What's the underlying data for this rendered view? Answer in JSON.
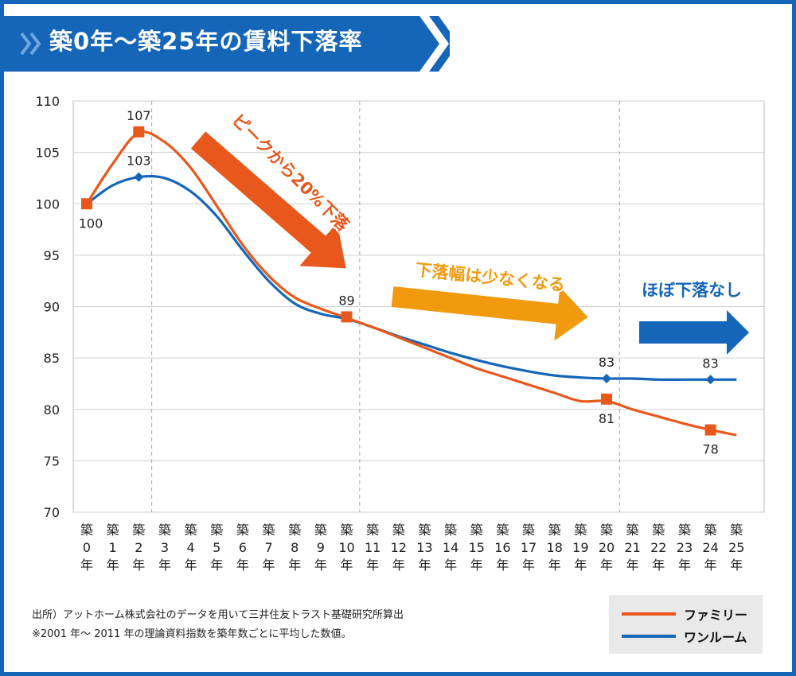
{
  "header": {
    "title": "築0年〜築25年の賃料下落率"
  },
  "chart_data": {
    "type": "line",
    "title": "築0年〜築25年の賃料下落率",
    "ylim": [
      70,
      110
    ],
    "yticks": [
      110,
      105,
      100,
      95,
      90,
      85,
      80,
      75,
      70
    ],
    "categories": [
      "築0年",
      "築1年",
      "築2年",
      "築3年",
      "築4年",
      "築5年",
      "築6年",
      "築7年",
      "築8年",
      "築9年",
      "築10年",
      "築11年",
      "築12年",
      "築13年",
      "築14年",
      "築15年",
      "築16年",
      "築17年",
      "築18年",
      "築19年",
      "築20年",
      "築21年",
      "築22年",
      "築23年",
      "築24年",
      "築25年"
    ],
    "category_numbers": [
      "0",
      "1",
      "2",
      "3",
      "4",
      "5",
      "6",
      "7",
      "8",
      "9",
      "10",
      "11",
      "12",
      "13",
      "14",
      "15",
      "16",
      "17",
      "18",
      "19",
      "20",
      "21",
      "22",
      "23",
      "24",
      "25"
    ],
    "category_prefix": "築",
    "category_suffix": "年",
    "grid": true,
    "dashed_vertical_lines_at": [
      2.5,
      10.5,
      20.5
    ],
    "series": [
      {
        "name": "ファミリー",
        "color": "#e8581c",
        "marker": "square",
        "values": [
          100,
          103.9,
          106.9,
          106.0,
          103.5,
          99.8,
          96.0,
          93.0,
          90.9,
          89.8,
          88.9,
          88.0,
          87.0,
          86.0,
          85.0,
          84.0,
          83.2,
          82.4,
          81.6,
          80.8,
          80.8,
          80.0,
          79.3,
          78.6,
          78.0,
          77.5
        ],
        "marker_points": [
          {
            "x": 0,
            "y": 100,
            "label": "100",
            "label_pos": "below"
          },
          {
            "x": 2,
            "y": 107,
            "label": "107",
            "label_pos": "above"
          },
          {
            "x": 10,
            "y": 89,
            "label": "89",
            "label_pos": "above"
          },
          {
            "x": 20,
            "y": 81,
            "label": "81",
            "label_pos": "below"
          },
          {
            "x": 24,
            "y": 78,
            "label": "78",
            "label_pos": "below"
          }
        ]
      },
      {
        "name": "ワンルーム",
        "color": "#1565b9",
        "marker": "diamond",
        "values": [
          100,
          101.8,
          102.6,
          102.5,
          101.2,
          98.8,
          95.5,
          92.5,
          90.3,
          89.3,
          88.8,
          88.0,
          87.1,
          86.3,
          85.5,
          84.8,
          84.2,
          83.7,
          83.3,
          83.1,
          83.0,
          83.0,
          82.9,
          82.9,
          82.9,
          82.9
        ],
        "marker_points": [
          {
            "x": 2,
            "y": 102.6,
            "label": "103",
            "label_pos": "above"
          },
          {
            "x": 20,
            "y": 83,
            "label": "83",
            "label_pos": "above"
          },
          {
            "x": 24,
            "y": 82.9,
            "label": "83",
            "label_pos": "above"
          }
        ]
      }
    ],
    "annotations": [
      {
        "id": "peak",
        "text": "ピークから20%下落",
        "color": "#e8581c"
      },
      {
        "id": "narrow",
        "text": "下落幅は少なくなる",
        "color": "#f29a0e"
      },
      {
        "id": "flat",
        "text": "ほぼ下落なし",
        "color": "#1565b9"
      }
    ],
    "legend": [
      "ファミリー",
      "ワンルーム"
    ],
    "legend_position": "bottom-right"
  },
  "footer": {
    "source_line1": "出所）アットホーム株式会社のデータを用いて三井住友トラスト基礎研究所算出",
    "source_line2": "※2001 年〜 2011 年の理論資料指数を築年数ごとに平均した数値。"
  },
  "colors": {
    "frame": "#1565b9",
    "title_banner": "#1565b9",
    "family": "#e8581c",
    "oneroom": "#1565b9",
    "arrow_orange": "#f29a0e"
  }
}
